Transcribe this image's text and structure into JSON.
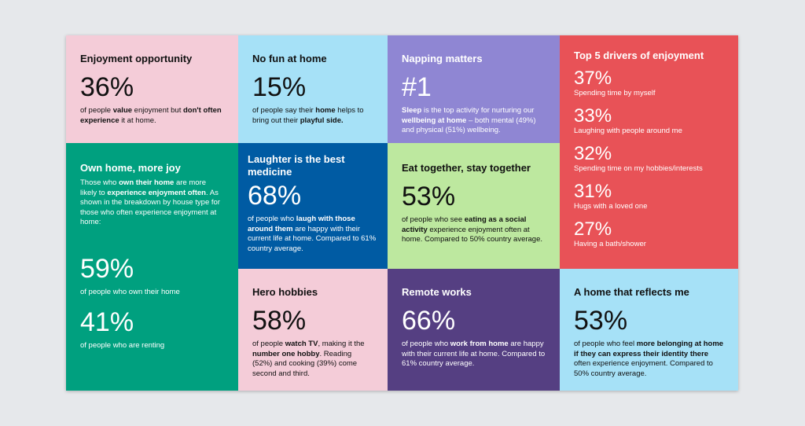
{
  "colors": {
    "pink": "#f4ccd8",
    "light_blue": "#a6e1f7",
    "lavender": "#8f86d3",
    "red": "#e85257",
    "teal": "#00a07f",
    "dark_blue": "#005ba3",
    "light_green": "#bde89f",
    "dark_purple": "#553f82",
    "background": "#e6e8eb"
  },
  "tiles": {
    "enjoyment_opportunity": {
      "title": "Enjoyment opportunity",
      "big": "36%",
      "text": [
        "of people ",
        "value",
        " enjoyment but ",
        "don't often experience",
        " it at home."
      ]
    },
    "no_fun_at_home": {
      "title": "No fun at home",
      "big": "15%",
      "text": [
        "of people say their ",
        "home",
        " helps to bring out their ",
        "playful side."
      ]
    },
    "napping_matters": {
      "title": "Napping matters",
      "big": "#1",
      "text": [
        "Sleep",
        " is the top activity for nurturing our ",
        "wellbeing at home",
        " – both mental (49%) and physical (51%) wellbeing."
      ]
    },
    "top_drivers": {
      "title": "Top 5 drivers of enjoyment",
      "items": [
        {
          "value": "37%",
          "label": "Spending time by myself"
        },
        {
          "value": "33%",
          "label": "Laughing with people around me"
        },
        {
          "value": "32%",
          "label": "Spending time on my hobbies/interests"
        },
        {
          "value": "31%",
          "label": "Hugs with a loved one"
        },
        {
          "value": "27%",
          "label": "Having a bath/shower"
        }
      ]
    },
    "own_home": {
      "title": "Own home, more joy",
      "text": [
        "Those who ",
        "own their home",
        " are more likely to ",
        "experience enjoyment often",
        ". As shown in the breakdown by house type for those who often experience enjoyment at home:"
      ],
      "stat1_value": "59%",
      "stat1_label": "of people who own their home",
      "stat2_value": "41%",
      "stat2_label": "of people who are renting"
    },
    "laughter": {
      "title": "Laughter is the best medicine",
      "big": "68%",
      "text": [
        "of people who ",
        "laugh with those around them",
        " are happy with their current life at home. Compared to 61% country average."
      ]
    },
    "eat_together": {
      "title": "Eat together, stay together",
      "big": "53%",
      "text": [
        "of people who see ",
        "eating as a social activity",
        " experience enjoyment often at home. Compared to 50% country average."
      ]
    },
    "hero_hobbies": {
      "title": "Hero hobbies",
      "big": "58%",
      "text": [
        "of people ",
        "watch TV",
        ", making it the ",
        "number one hobby",
        ". Reading (52%) and cooking (39%) come second and third."
      ]
    },
    "remote_works": {
      "title": "Remote works",
      "big": "66%",
      "text": [
        "of people who ",
        "work from home",
        " are happy with their current life at home. Compared to 61% country average."
      ]
    },
    "reflects_me": {
      "title": "A home that reflects me",
      "big": "53%",
      "text": [
        "of people who feel ",
        "more belonging at home if they can express their identity there",
        " often experience enjoyment. Compared to 50% country average."
      ]
    }
  }
}
